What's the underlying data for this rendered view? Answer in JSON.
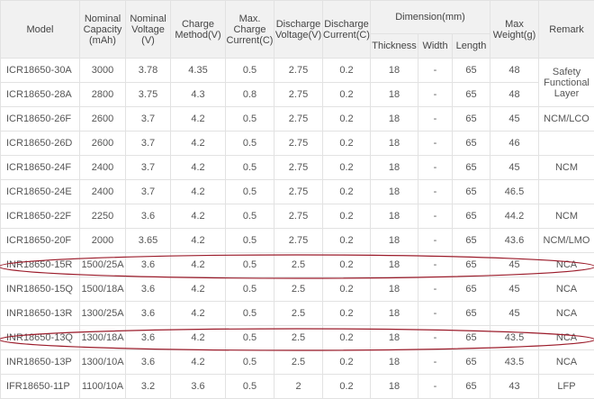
{
  "headers": {
    "model": "Model",
    "capacity": [
      "Nominal",
      "Capacity",
      "(mAh)"
    ],
    "voltage": [
      "Nominal",
      "Voltage",
      "(V)"
    ],
    "charge_method": [
      "Charge",
      "Method(V)"
    ],
    "max_charge": [
      "Max.",
      "Charge",
      "Current(C)"
    ],
    "discharge_voltage": [
      "Discharge",
      "Voltage(V)"
    ],
    "discharge_current": [
      "Discharge",
      "Current(C)"
    ],
    "dimension": "Dimension(mm)",
    "thickness": "Thickness",
    "width": "Width",
    "length": "Length",
    "max_weight": [
      "Max",
      "Weight(g)"
    ],
    "remark": "Remark"
  },
  "rows": [
    [
      "ICR18650-30A",
      "3000",
      "3.78",
      "4.35",
      "0.5",
      "2.75",
      "0.2",
      "18",
      "-",
      "65",
      "48"
    ],
    [
      "ICR18650-28A",
      "2800",
      "3.75",
      "4.3",
      "0.8",
      "2.75",
      "0.2",
      "18",
      "-",
      "65",
      "48"
    ],
    [
      "ICR18650-26F",
      "2600",
      "3.7",
      "4.2",
      "0.5",
      "2.75",
      "0.2",
      "18",
      "-",
      "65",
      "45"
    ],
    [
      "ICR18650-26D",
      "2600",
      "3.7",
      "4.2",
      "0.5",
      "2.75",
      "0.2",
      "18",
      "-",
      "65",
      "46"
    ],
    [
      "ICR18650-24F",
      "2400",
      "3.7",
      "4.2",
      "0.5",
      "2.75",
      "0.2",
      "18",
      "-",
      "65",
      "45"
    ],
    [
      "ICR18650-24E",
      "2400",
      "3.7",
      "4.2",
      "0.5",
      "2.75",
      "0.2",
      "18",
      "-",
      "65",
      "46.5"
    ],
    [
      "ICR18650-22F",
      "2250",
      "3.6",
      "4.2",
      "0.5",
      "2.75",
      "0.2",
      "18",
      "-",
      "65",
      "44.2"
    ],
    [
      "ICR18650-20F",
      "2000",
      "3.65",
      "4.2",
      "0.5",
      "2.75",
      "0.2",
      "18",
      "-",
      "65",
      "43.6"
    ],
    [
      "INR18650-15R",
      "1500/25A",
      "3.6",
      "4.2",
      "0.5",
      "2.5",
      "0.2",
      "18",
      "-",
      "65",
      "45"
    ],
    [
      "INR18650-15Q",
      "1500/18A",
      "3.6",
      "4.2",
      "0.5",
      "2.5",
      "0.2",
      "18",
      "-",
      "65",
      "45"
    ],
    [
      "INR18650-13R",
      "1300/25A",
      "3.6",
      "4.2",
      "0.5",
      "2.5",
      "0.2",
      "18",
      "-",
      "65",
      "45"
    ],
    [
      "INR18650-13Q",
      "1300/18A",
      "3.6",
      "4.2",
      "0.5",
      "2.5",
      "0.2",
      "18",
      "-",
      "65",
      "43.5"
    ],
    [
      "INR18650-13P",
      "1300/10A",
      "3.6",
      "4.2",
      "0.5",
      "2.5",
      "0.2",
      "18",
      "-",
      "65",
      "43.5"
    ],
    [
      "IFR18650-11P",
      "1100/10A",
      "3.2",
      "3.6",
      "0.5",
      "2",
      "0.2",
      "18",
      "-",
      "65",
      "43"
    ]
  ],
  "remarks": {
    "safety": [
      "Safety",
      "Functional",
      "Layer"
    ],
    "ncm_lco": "NCM/LCO",
    "ncm": "NCM",
    "ncm2": "NCM",
    "ncm_lmo": "NCM/LMO",
    "nca": [
      "NCA",
      "NCA",
      "NCA",
      "NCA",
      "NCA"
    ],
    "lfp": "LFP"
  },
  "colors": {
    "header_bg": "#f1f1f1",
    "border": "#e2e2e2",
    "text": "#555555",
    "highlight_oval": "#9b1b2a"
  }
}
